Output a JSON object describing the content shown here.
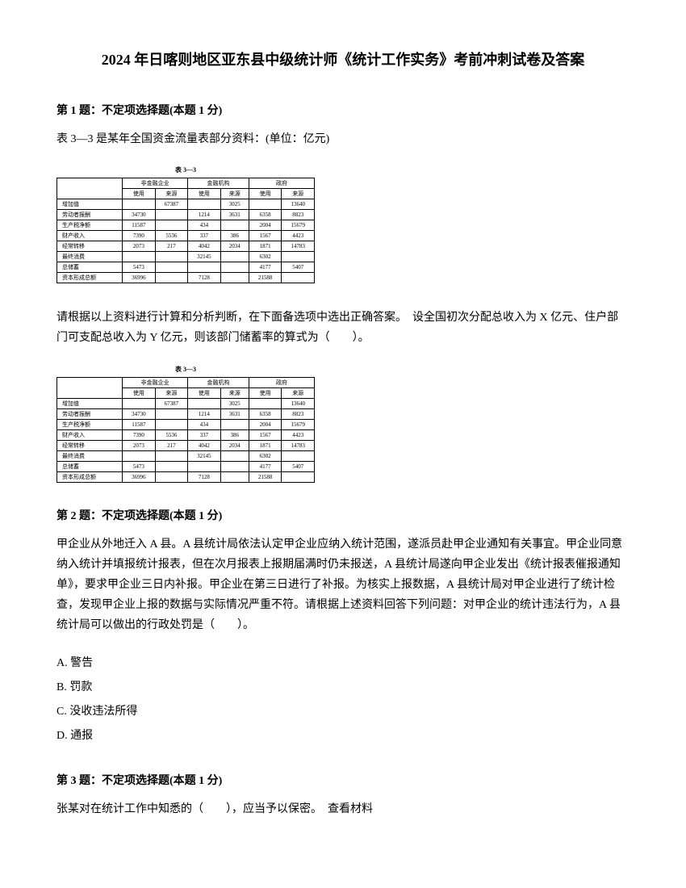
{
  "title": "2024 年日喀则地区亚东县中级统计师《统计工作实务》考前冲刺试卷及答案",
  "q1": {
    "header": "第 1 题：不定项选择题(本题 1 分)",
    "intro": "表 3—3 是某年全国资金流量表部分资料：(单位：亿元)",
    "body": "请根据以上资料进行计算和分析判断，在下面备选项中选出正确答案。　设全国初次分配总收入为 X 亿元、住户部门可支配总收入为 Y 亿元，则该部门储蓄率的算式为（　　）。"
  },
  "table": {
    "caption": "表 3—3",
    "group_headers": [
      "非金融企业",
      "金融机构",
      "政府"
    ],
    "sub_headers": [
      "使用",
      "来源",
      "使用",
      "来源",
      "使用",
      "来源"
    ],
    "rows": [
      {
        "label": "增加值",
        "cells": [
          "",
          "67387",
          "",
          "3025",
          "",
          "13640"
        ]
      },
      {
        "label": "劳动者报酬",
        "cells": [
          "34730",
          "",
          "1214",
          "3631",
          "6358",
          "8823"
        ]
      },
      {
        "label": "生产税净额",
        "cells": [
          "11587",
          "",
          "434",
          "",
          "2004",
          "15679"
        ]
      },
      {
        "label": "财产收入",
        "cells": [
          "7390",
          "5536",
          "337",
          "386",
          "1567",
          "4423"
        ]
      },
      {
        "label": "经常转移",
        "cells": [
          "2073",
          "217",
          "4042",
          "2034",
          "1871",
          "14783"
        ]
      },
      {
        "label": "最终消费",
        "cells": [
          "",
          "",
          "32145",
          "",
          "6302",
          ""
        ]
      },
      {
        "label": "总储蓄",
        "cells": [
          "5473",
          "",
          "",
          "",
          "4177",
          "5407"
        ]
      },
      {
        "label": "资本形成总额",
        "cells": [
          "36996",
          "",
          "7128",
          "",
          "21588",
          ""
        ]
      }
    ]
  },
  "q2": {
    "header": "第 2 题：不定项选择题(本题 1 分)",
    "body": "甲企业从外地迁入 A 县。A 县统计局依法认定甲企业应纳入统计范围，遂派员赴甲企业通知有关事宜。甲企业同意纳入统计并填报统计报表，但在次月报表上报期届满时仍未报送，A 县统计局遂向甲企业发出《统计报表催报通知单》，要求甲企业三日内补报。甲企业在第三日进行了补报。为核实上报数据，A 县统计局对甲企业进行了统计检查，发现甲企业上报的数据与实际情况严重不符。请根据上述资料回答下列问题：对甲企业的统计违法行为，A 县统计局可以做出的行政处罚是（　　）。",
    "options": {
      "a": "A. 警告",
      "b": "B. 罚款",
      "c": "C. 没收违法所得",
      "d": "D. 通报"
    }
  },
  "q3": {
    "header": "第 3 题：不定项选择题(本题 1 分)",
    "body": "张某对在统计工作中知悉的（　　），应当予以保密。　查看材料"
  }
}
